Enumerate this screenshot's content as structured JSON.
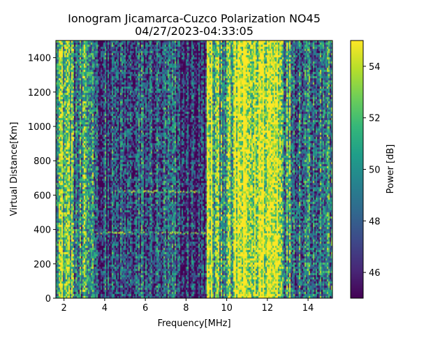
{
  "chart_data": {
    "type": "heatmap",
    "title": "Ionogram Jicamarca-Cuzco Polarization NO45",
    "subtitle": "04/27/2023-04:33:05",
    "xlabel": "Frequency[MHz]",
    "ylabel": "Virtual Distance[Km]",
    "xlim": [
      1.6,
      15.2
    ],
    "ylim": [
      0,
      1500
    ],
    "x_ticks": [
      2,
      4,
      6,
      8,
      10,
      12,
      14
    ],
    "y_ticks": [
      0,
      200,
      400,
      600,
      800,
      1000,
      1200,
      1400
    ],
    "colorbar": {
      "label": "Power [dB]",
      "range": [
        45.0,
        55.0
      ],
      "ticks": [
        46,
        48,
        50,
        52,
        54
      ],
      "colormap": "viridis"
    },
    "colormap_stops": [
      "#440154",
      "#482878",
      "#3e4989",
      "#31688e",
      "#26828e",
      "#1f9e89",
      "#35b779",
      "#6ece58",
      "#b5de2b",
      "#fde725"
    ],
    "frequency_band_mean_power_db": [
      {
        "from": 1.6,
        "to": 2.4,
        "mean_db": 52.5
      },
      {
        "from": 2.4,
        "to": 3.0,
        "mean_db": 49.0
      },
      {
        "from": 3.0,
        "to": 3.6,
        "mean_db": 50.5
      },
      {
        "from": 3.6,
        "to": 5.5,
        "mean_db": 47.0
      },
      {
        "from": 5.5,
        "to": 7.5,
        "mean_db": 47.5
      },
      {
        "from": 7.5,
        "to": 9.0,
        "mean_db": 46.5
      },
      {
        "from": 9.0,
        "to": 9.3,
        "mean_db": 54.0
      },
      {
        "from": 9.3,
        "to": 10.4,
        "mean_db": 51.5
      },
      {
        "from": 10.4,
        "to": 11.0,
        "mean_db": 54.5
      },
      {
        "from": 11.0,
        "to": 11.5,
        "mean_db": 53.5
      },
      {
        "from": 11.5,
        "to": 12.7,
        "mean_db": 54.8
      },
      {
        "from": 12.7,
        "to": 13.2,
        "mean_db": 51.0
      },
      {
        "from": 13.2,
        "to": 15.2,
        "mean_db": 49.5
      }
    ],
    "echo_traces": [
      {
        "f_from": 3.4,
        "f_to": 9.0,
        "virtual_distance_km": 380
      },
      {
        "f_from": 4.5,
        "f_to": 8.5,
        "virtual_distance_km": 620
      }
    ]
  }
}
